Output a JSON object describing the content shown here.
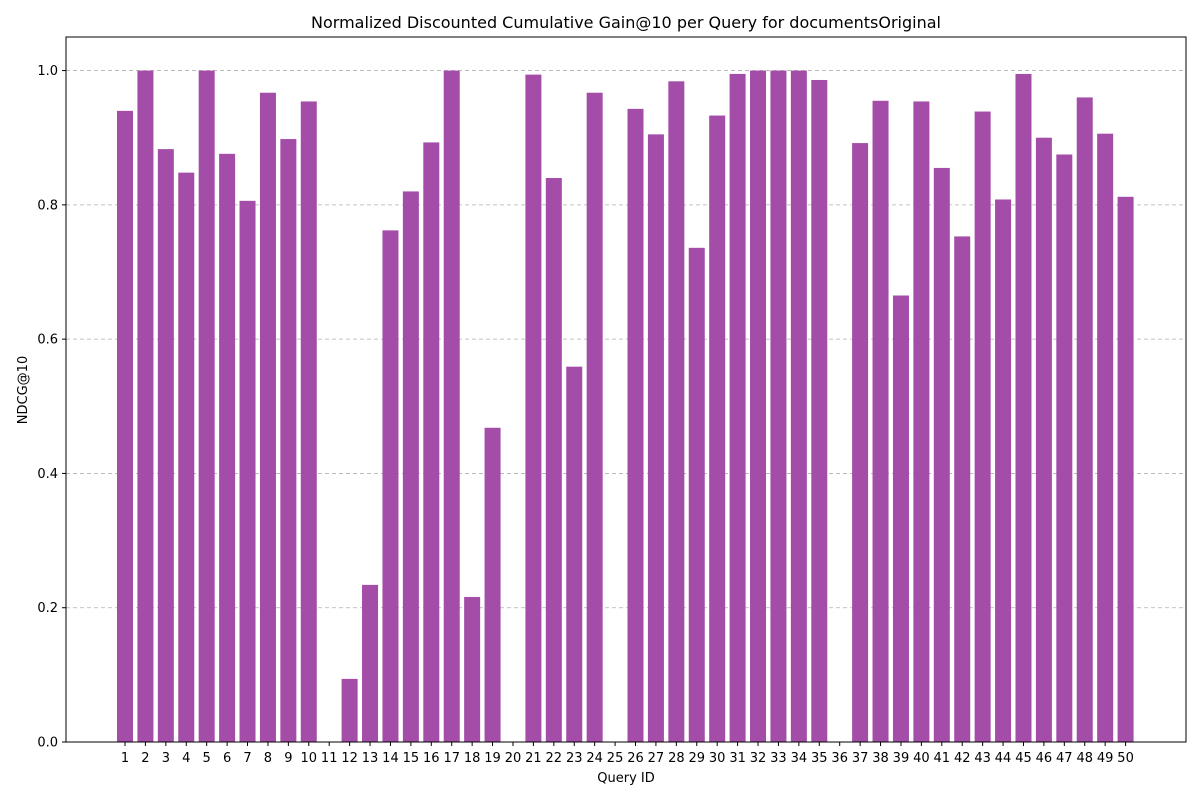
{
  "chart_data": {
    "type": "bar",
    "title": "Normalized Discounted Cumulative Gain@10 per Query for documentsOriginal",
    "xlabel": "Query ID",
    "ylabel": "NDCG@10",
    "ylim": [
      0,
      1.05
    ],
    "yticks": [
      "0.0",
      "0.2",
      "0.4",
      "0.6",
      "0.8",
      "1.0"
    ],
    "grid": "y-dashed",
    "bar_color": "#a34ca8",
    "categories": [
      "1",
      "2",
      "3",
      "4",
      "5",
      "6",
      "7",
      "8",
      "9",
      "10",
      "11",
      "12",
      "13",
      "14",
      "15",
      "16",
      "17",
      "18",
      "19",
      "20",
      "21",
      "22",
      "23",
      "24",
      "25",
      "26",
      "27",
      "28",
      "29",
      "30",
      "31",
      "32",
      "33",
      "34",
      "35",
      "36",
      "37",
      "38",
      "39",
      "40",
      "41",
      "42",
      "43",
      "44",
      "45",
      "46",
      "47",
      "48",
      "49",
      "50"
    ],
    "values": [
      0.94,
      1.0,
      0.883,
      0.848,
      1.0,
      0.876,
      0.806,
      0.967,
      0.898,
      0.954,
      0.0,
      0.094,
      0.234,
      0.762,
      0.82,
      0.893,
      1.0,
      0.216,
      0.468,
      0.0,
      0.994,
      0.84,
      0.559,
      0.967,
      0.0,
      0.943,
      0.905,
      0.984,
      0.736,
      0.933,
      0.995,
      1.0,
      1.0,
      1.0,
      0.986,
      0.0,
      0.892,
      0.955,
      0.665,
      0.954,
      0.855,
      0.753,
      0.939,
      0.808,
      0.995,
      0.9,
      0.875,
      0.96,
      0.906,
      0.812
    ]
  }
}
